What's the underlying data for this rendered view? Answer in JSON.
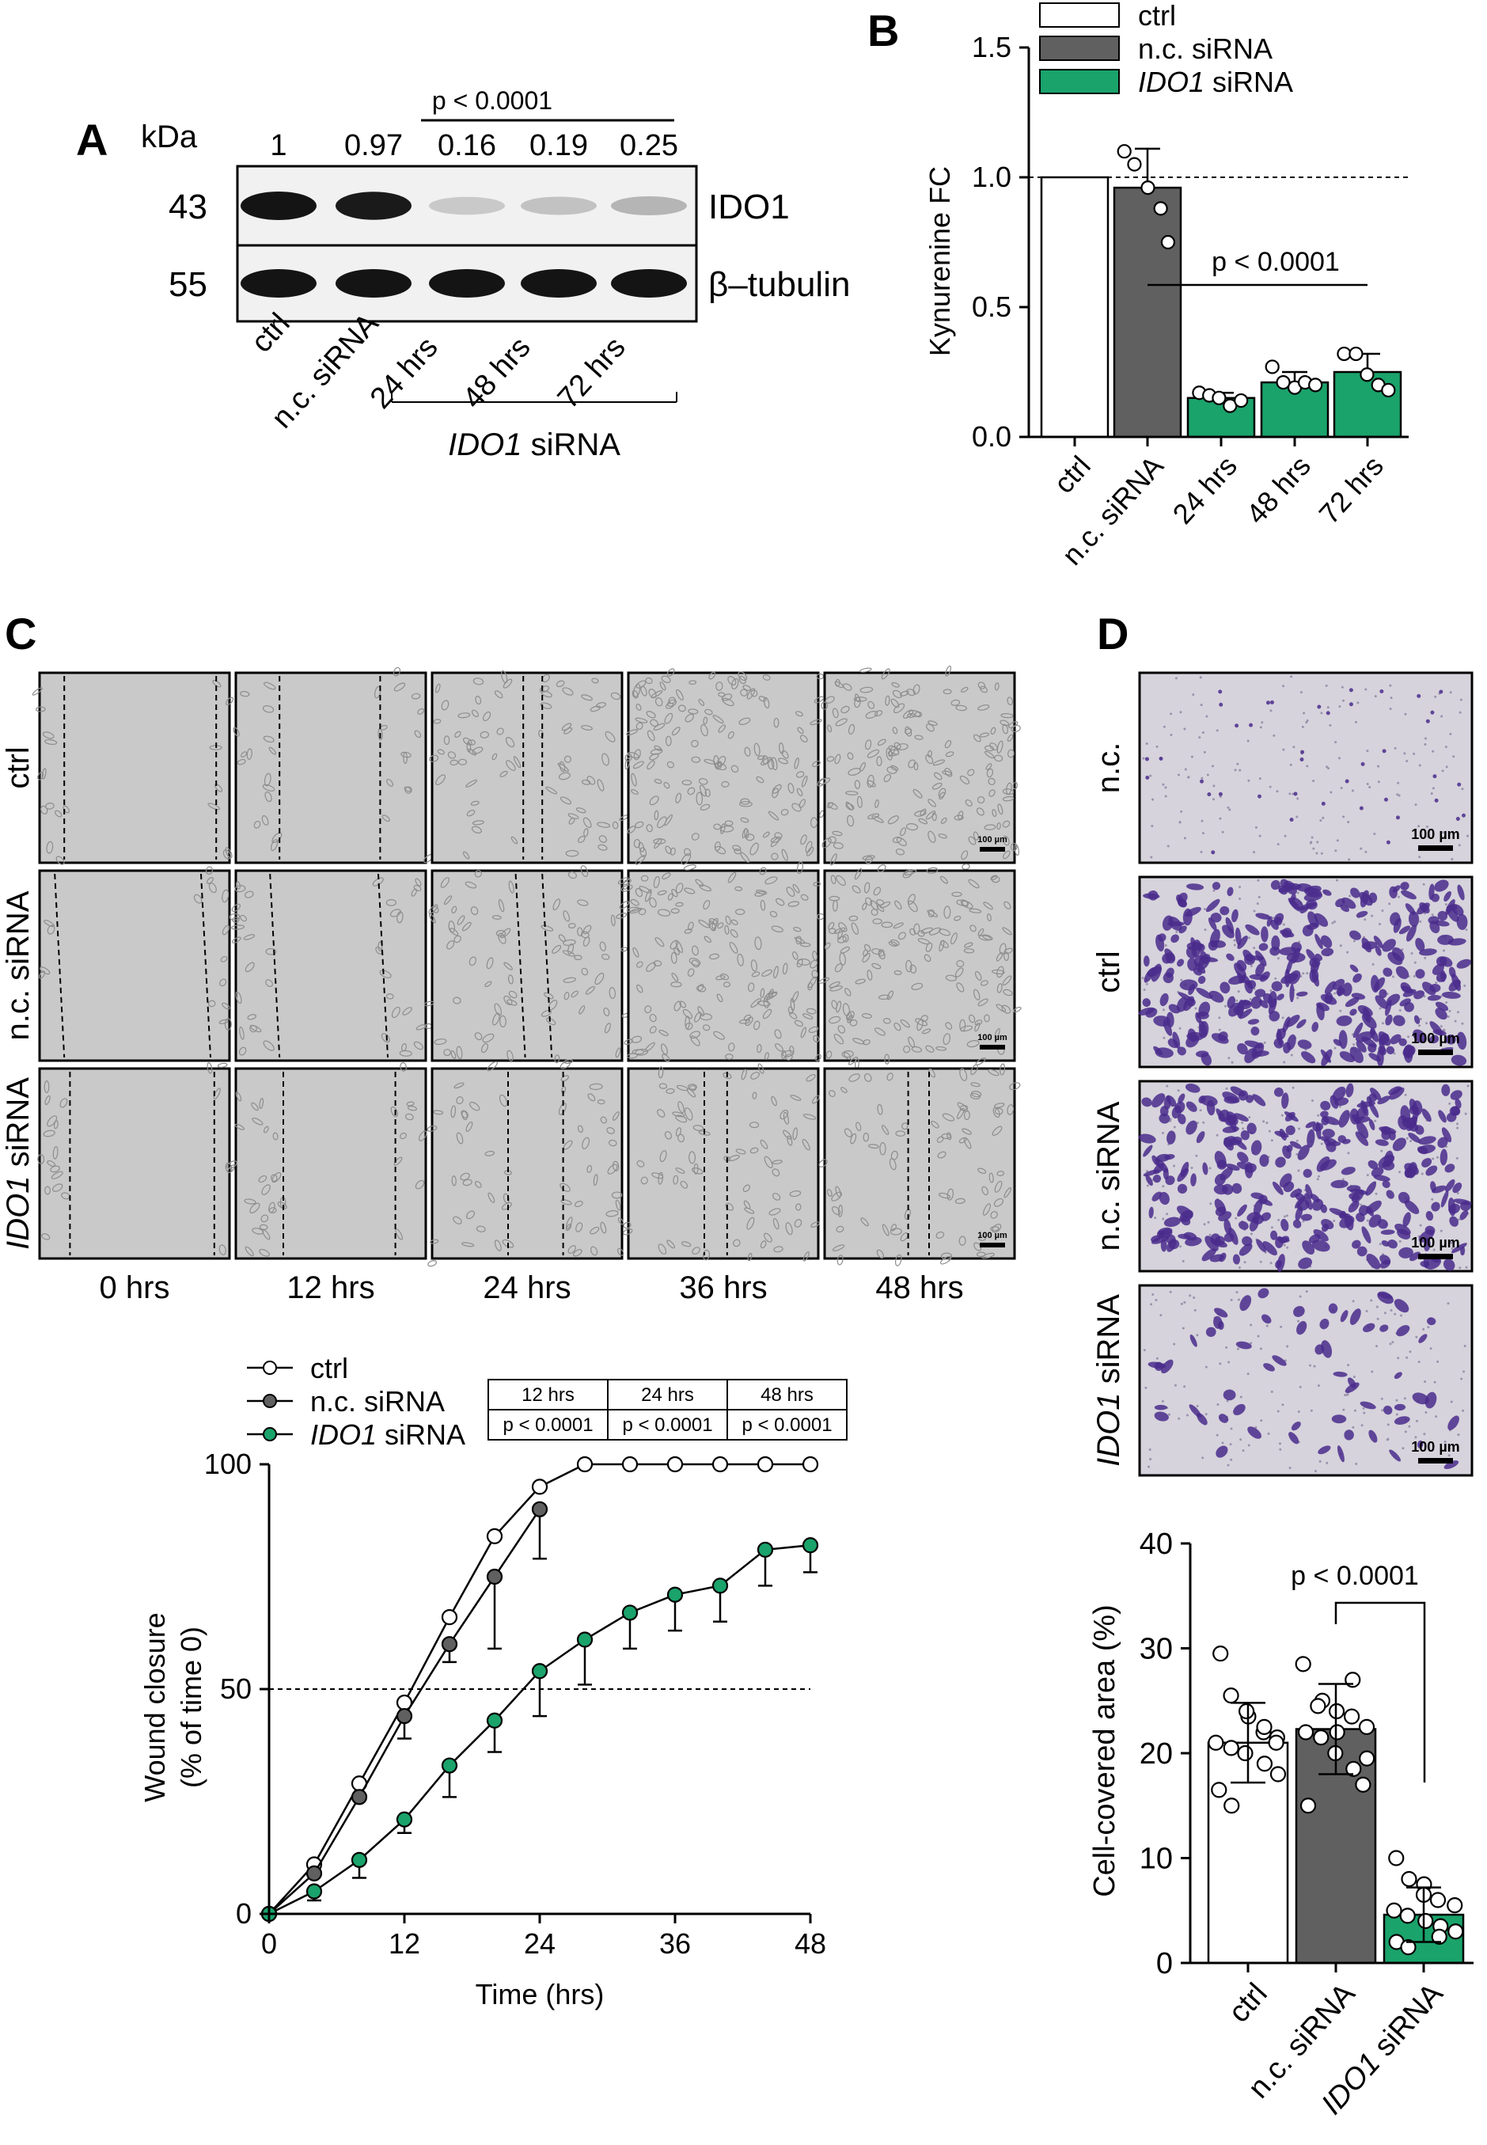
{
  "panel_letters": [
    "A",
    "B",
    "C",
    "D"
  ],
  "panelA": {
    "kda_label": "kDa",
    "ratios": [
      "1",
      "0.97",
      "0.16",
      "0.19",
      "0.25"
    ],
    "p_value": "p < 0.0001",
    "blots": [
      {
        "mw": "43",
        "protein": "IDO1",
        "intensity": [
          1.0,
          0.97,
          0.16,
          0.19,
          0.25
        ]
      },
      {
        "mw": "55",
        "protein": "β–tubulin",
        "intensity": [
          1.0,
          1.0,
          1.0,
          1.0,
          1.0
        ]
      }
    ],
    "lane_labels": [
      "ctrl",
      "n.c. siRNA",
      "24 hrs",
      "48 hrs",
      "72 hrs"
    ],
    "group_label": {
      "italic": "IDO1",
      "rest": " siRNA"
    }
  },
  "panelB": {
    "chart_data": {
      "type": "bar",
      "ylabel": "Kynurenine FC",
      "ylim": [
        0,
        1.5
      ],
      "yticks": [
        "0.0",
        "0.5",
        "1.0",
        "1.5"
      ],
      "categories": [
        "ctrl",
        "n.c. siRNA",
        "24 hrs",
        "48 hrs",
        "72 hrs"
      ],
      "values": [
        1.0,
        0.96,
        0.15,
        0.21,
        0.25
      ],
      "errors": [
        0,
        0.15,
        0.02,
        0.04,
        0.07
      ],
      "points": [
        [],
        [
          1.1,
          1.05,
          0.96,
          0.88,
          0.75
        ],
        [
          0.17,
          0.16,
          0.15,
          0.12,
          0.14
        ],
        [
          0.27,
          0.21,
          0.19,
          0.21,
          0.2
        ],
        [
          0.32,
          0.32,
          0.24,
          0.2,
          0.18
        ]
      ],
      "bar_colors": [
        "#ffffff",
        "#606060",
        "#1aa36b",
        "#1aa36b",
        "#1aa36b"
      ],
      "reference_line": 1.0,
      "p_value": "p < 0.0001",
      "legend": [
        {
          "label": "ctrl",
          "color": "#ffffff"
        },
        {
          "label": "n.c. siRNA",
          "color": "#606060"
        },
        {
          "label_italic": "IDO1",
          "label": " siRNA",
          "color": "#1aa36b"
        }
      ]
    }
  },
  "panelC": {
    "row_labels": [
      {
        "text": "ctrl"
      },
      {
        "text": "n.c. siRNA"
      },
      {
        "italic": "IDO1",
        "text": " siRNA"
      }
    ],
    "time_labels": [
      "0 hrs",
      "12 hrs",
      "24 hrs",
      "36 hrs",
      "48 hrs"
    ],
    "scale_bar_label": "100 µm",
    "chart_data": {
      "type": "line",
      "xlabel": "Time (hrs)",
      "ylabel": [
        "Wound closure",
        "(% of time 0)"
      ],
      "xlim": [
        0,
        48
      ],
      "ylim": [
        0,
        100
      ],
      "xticks": [
        "0",
        "12",
        "24",
        "36",
        "48"
      ],
      "yticks": [
        "0",
        "50",
        "100"
      ],
      "reference_line": 50,
      "series": [
        {
          "name": "ctrl",
          "color": "#ffffff",
          "x": [
            0,
            4,
            8,
            12,
            16,
            20,
            24,
            28,
            32,
            36,
            40,
            44,
            48
          ],
          "y": [
            0,
            11,
            29,
            47,
            66,
            84,
            95,
            100,
            100,
            100,
            100,
            100,
            100
          ],
          "err": [
            0,
            0,
            0,
            0,
            0,
            0,
            0,
            0,
            0,
            0,
            0,
            0,
            0
          ]
        },
        {
          "name": "n.c. siRNA",
          "color": "#606060",
          "x": [
            0,
            4,
            8,
            12,
            16,
            20,
            24
          ],
          "y": [
            0,
            9,
            26,
            44,
            60,
            75,
            90
          ],
          "err": [
            0,
            0,
            0,
            5,
            4,
            16,
            11
          ]
        },
        {
          "name_italic": "IDO1",
          "name": " siRNA",
          "color": "#1aa36b",
          "x": [
            0,
            4,
            8,
            12,
            16,
            20,
            24,
            28,
            32,
            36,
            40,
            44,
            48
          ],
          "y": [
            0,
            5,
            12,
            21,
            33,
            43,
            54,
            61,
            67,
            71,
            73,
            81,
            82
          ],
          "err": [
            0,
            2,
            4,
            3,
            7,
            7,
            10,
            10,
            8,
            8,
            8,
            8,
            6
          ]
        }
      ],
      "p_table": {
        "headers": [
          "12 hrs",
          "24 hrs",
          "48 hrs"
        ],
        "values": [
          "p < 0.0001",
          "p < 0.0001",
          "p < 0.0001"
        ]
      }
    }
  },
  "panelD": {
    "row_labels": [
      {
        "text": "n.c."
      },
      {
        "text": "ctrl"
      },
      {
        "text": "n.c. siRNA"
      },
      {
        "italic": "IDO1",
        "text": " siRNA"
      }
    ],
    "scale_bar_label": "100 µm",
    "chart_data": {
      "type": "bar",
      "ylabel": "Cell-covered area (%)",
      "ylim": [
        0,
        40
      ],
      "yticks": [
        "0",
        "10",
        "20",
        "30",
        "40"
      ],
      "categories": [
        {
          "text": "ctrl"
        },
        {
          "text": "n.c. siRNA"
        },
        {
          "italic": "IDO1",
          "text": " siRNA"
        }
      ],
      "values": [
        21.0,
        22.3,
        4.6
      ],
      "errors": [
        3.8,
        4.3,
        2.6
      ],
      "points": [
        [
          29.5,
          25.5,
          23.5,
          22.0,
          21.5,
          21.0,
          20.5,
          20.0,
          19.0,
          18.0,
          16.5,
          15.0,
          24.0,
          22.5,
          21.0
        ],
        [
          28.5,
          25.0,
          24.0,
          23.5,
          22.5,
          22.0,
          21.5,
          20.0,
          18.5,
          17.0,
          15.0,
          24.5,
          22.0,
          27.0,
          19.5
        ],
        [
          10.0,
          8.0,
          7.5,
          6.0,
          5.5,
          5.0,
          4.5,
          4.0,
          3.5,
          3.0,
          2.0,
          1.5,
          6.5,
          2.5
        ]
      ],
      "bar_colors": [
        "#ffffff",
        "#606060",
        "#1aa36b"
      ],
      "p_value": "p < 0.0001"
    }
  }
}
